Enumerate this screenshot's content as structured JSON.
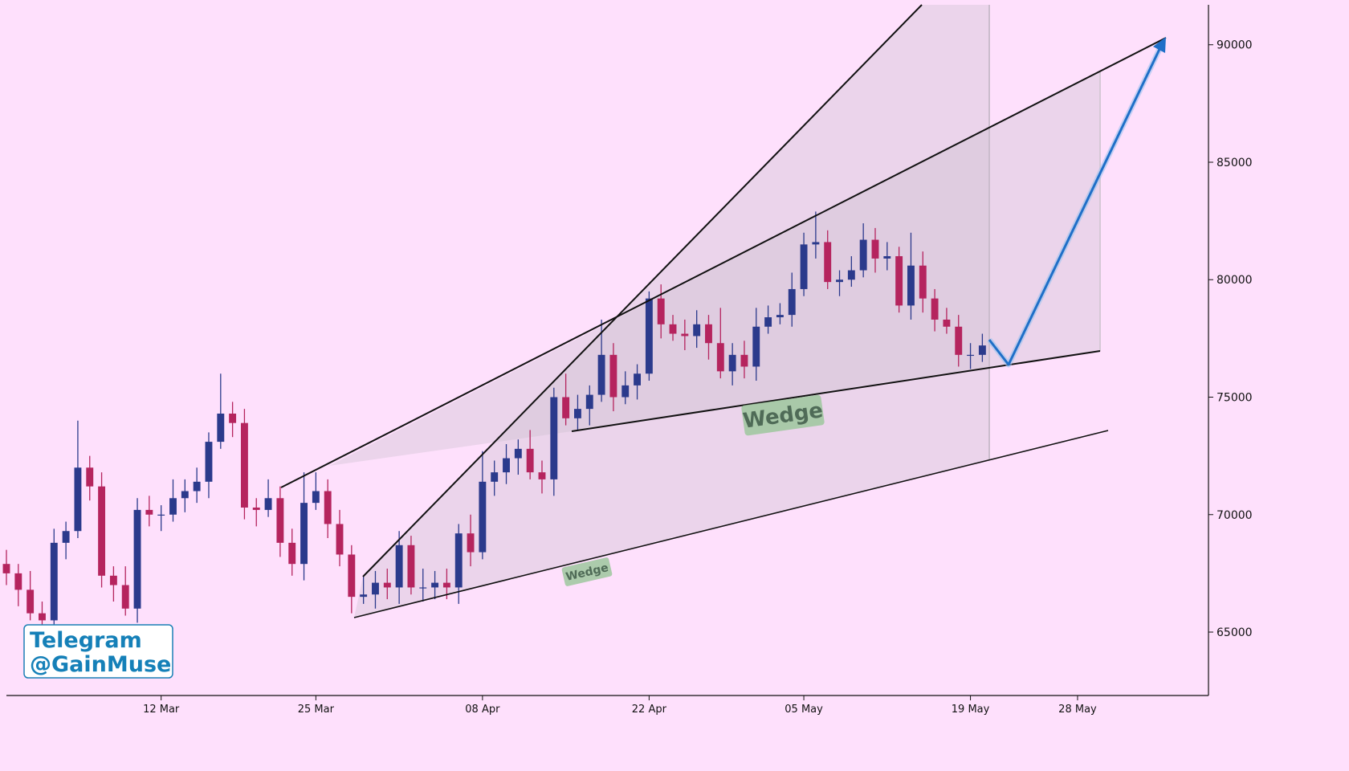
{
  "chart_data": {
    "type": "candlestick",
    "x": [
      "27 Feb",
      "28 Feb",
      "01 Mar",
      "02 Mar",
      "03 Mar",
      "04 Mar",
      "05 Mar",
      "06 Mar",
      "07 Mar",
      "08 Mar",
      "09 Mar",
      "10 Mar",
      "11 Mar",
      "12 Mar",
      "13 Mar",
      "14 Mar",
      "15 Mar",
      "16 Mar",
      "17 Mar",
      "18 Mar",
      "19 Mar",
      "20 Mar",
      "21 Mar",
      "22 Mar",
      "23 Mar",
      "24 Mar",
      "25 Mar",
      "26 Mar",
      "27 Mar",
      "28 Mar",
      "29 Mar",
      "30 Mar",
      "31 Mar",
      "01 Apr",
      "02 Apr",
      "03 Apr",
      "04 Apr",
      "05 Apr",
      "06 Apr",
      "07 Apr",
      "08 Apr",
      "09 Apr",
      "10 Apr",
      "11 Apr",
      "12 Apr",
      "13 Apr",
      "14 Apr",
      "15 Apr",
      "16 Apr",
      "17 Apr",
      "18 Apr",
      "19 Apr",
      "20 Apr",
      "21 Apr",
      "22 Apr",
      "23 Apr",
      "24 Apr",
      "25 Apr",
      "26 Apr",
      "27 Apr",
      "28 Apr",
      "29 Apr",
      "30 Apr",
      "01 May",
      "02 May",
      "03 May",
      "04 May",
      "05 May",
      "06 May",
      "07 May",
      "08 May",
      "09 May",
      "10 May",
      "11 May",
      "12 May",
      "13 May",
      "14 May",
      "15 May",
      "16 May",
      "17 May",
      "18 May",
      "19 May",
      "20 May"
    ],
    "open": [
      67900,
      67500,
      66800,
      65800,
      65500,
      68800,
      69300,
      72000,
      71200,
      67400,
      67000,
      66000,
      70200,
      70000,
      70000,
      70700,
      71000,
      71400,
      73100,
      74300,
      73900,
      70300,
      70200,
      70700,
      68800,
      67900,
      70500,
      71000,
      69600,
      68300,
      66500,
      66600,
      67100,
      66900,
      68700,
      66900,
      66900,
      67100,
      66900,
      69200,
      68400,
      71400,
      71800,
      72400,
      72800,
      71800,
      71500,
      75000,
      74100,
      74500,
      75100,
      76800,
      75000,
      75500,
      76000,
      79200,
      78100,
      77700,
      77600,
      78100,
      77300,
      76100,
      76800,
      76300,
      78000,
      78400,
      78500,
      79600,
      81500,
      81600,
      79900,
      80000,
      80400,
      81700,
      80900,
      81000,
      78900,
      80600,
      79200,
      78300,
      78000,
      76800,
      76800
    ],
    "high": [
      68500,
      67900,
      67600,
      66300,
      69400,
      69700,
      74000,
      72500,
      71800,
      67800,
      67800,
      70700,
      70800,
      70400,
      71500,
      71500,
      72000,
      73500,
      76000,
      74800,
      74500,
      70700,
      71500,
      71200,
      69400,
      71800,
      71800,
      71500,
      70200,
      68700,
      67400,
      67600,
      67700,
      69300,
      69100,
      67700,
      67600,
      67700,
      69600,
      70000,
      72700,
      72300,
      73000,
      73200,
      73600,
      72300,
      75400,
      76000,
      75100,
      75500,
      78300,
      77300,
      76100,
      76400,
      79500,
      79800,
      78500,
      78300,
      78700,
      78500,
      78800,
      77300,
      77400,
      78800,
      78900,
      79000,
      80300,
      82000,
      82900,
      82100,
      80400,
      81000,
      82400,
      82200,
      81600,
      81400,
      82000,
      81200,
      79600,
      78800,
      78500,
      77300,
      77700
    ],
    "low": [
      67000,
      66100,
      65500,
      64900,
      65000,
      68100,
      69000,
      70600,
      66900,
      66300,
      65700,
      65400,
      69500,
      69300,
      69700,
      70100,
      70500,
      70700,
      72800,
      73300,
      69800,
      69500,
      69900,
      68200,
      67400,
      67200,
      70200,
      69000,
      67800,
      65800,
      66200,
      66000,
      66400,
      66200,
      66600,
      66300,
      66400,
      66400,
      66200,
      67800,
      68100,
      70800,
      71300,
      71700,
      71500,
      70900,
      70800,
      73800,
      73600,
      73800,
      74800,
      74400,
      74700,
      74900,
      75700,
      77500,
      77400,
      77000,
      77100,
      76600,
      75800,
      75500,
      75800,
      75700,
      77700,
      78100,
      78000,
      79300,
      80900,
      79600,
      79300,
      79700,
      80100,
      80300,
      80400,
      78600,
      78300,
      78600,
      77800,
      77700,
      76300,
      76200,
      76500
    ],
    "close": [
      67500,
      66800,
      65800,
      65500,
      68800,
      69300,
      72000,
      71200,
      67400,
      67000,
      66000,
      70200,
      70000,
      70000,
      70700,
      71000,
      71400,
      73100,
      74300,
      73900,
      70300,
      70200,
      70700,
      68800,
      67900,
      70500,
      71000,
      69600,
      68300,
      66500,
      66600,
      67100,
      66900,
      68700,
      66900,
      66900,
      67100,
      66900,
      69200,
      68400,
      71400,
      71800,
      72400,
      72800,
      71800,
      71500,
      75000,
      74100,
      74500,
      75100,
      76800,
      75000,
      75500,
      76000,
      79200,
      78100,
      77700,
      77600,
      78100,
      77300,
      76100,
      76800,
      76300,
      78000,
      78400,
      78500,
      79600,
      81500,
      81600,
      79900,
      80000,
      80400,
      81700,
      80900,
      81000,
      78900,
      80600,
      79200,
      78300,
      78000,
      76800,
      76800,
      77200
    ],
    "up_color": "#2b3a8c",
    "down_color": "#b5245e",
    "xlim": [
      "27 Feb",
      "08 Jun"
    ],
    "xticks": [
      "12 Mar",
      "25 Mar",
      "08 Apr",
      "22 Apr",
      "05 May",
      "19 May",
      "28 May"
    ],
    "ylim": [
      62300,
      91700
    ],
    "yticks": [
      65000,
      70000,
      75000,
      80000,
      85000,
      90000
    ],
    "annotations": [
      "Wedge",
      "Wedge"
    ],
    "watermark": [
      "Telegram",
      "@GainMuse"
    ]
  }
}
